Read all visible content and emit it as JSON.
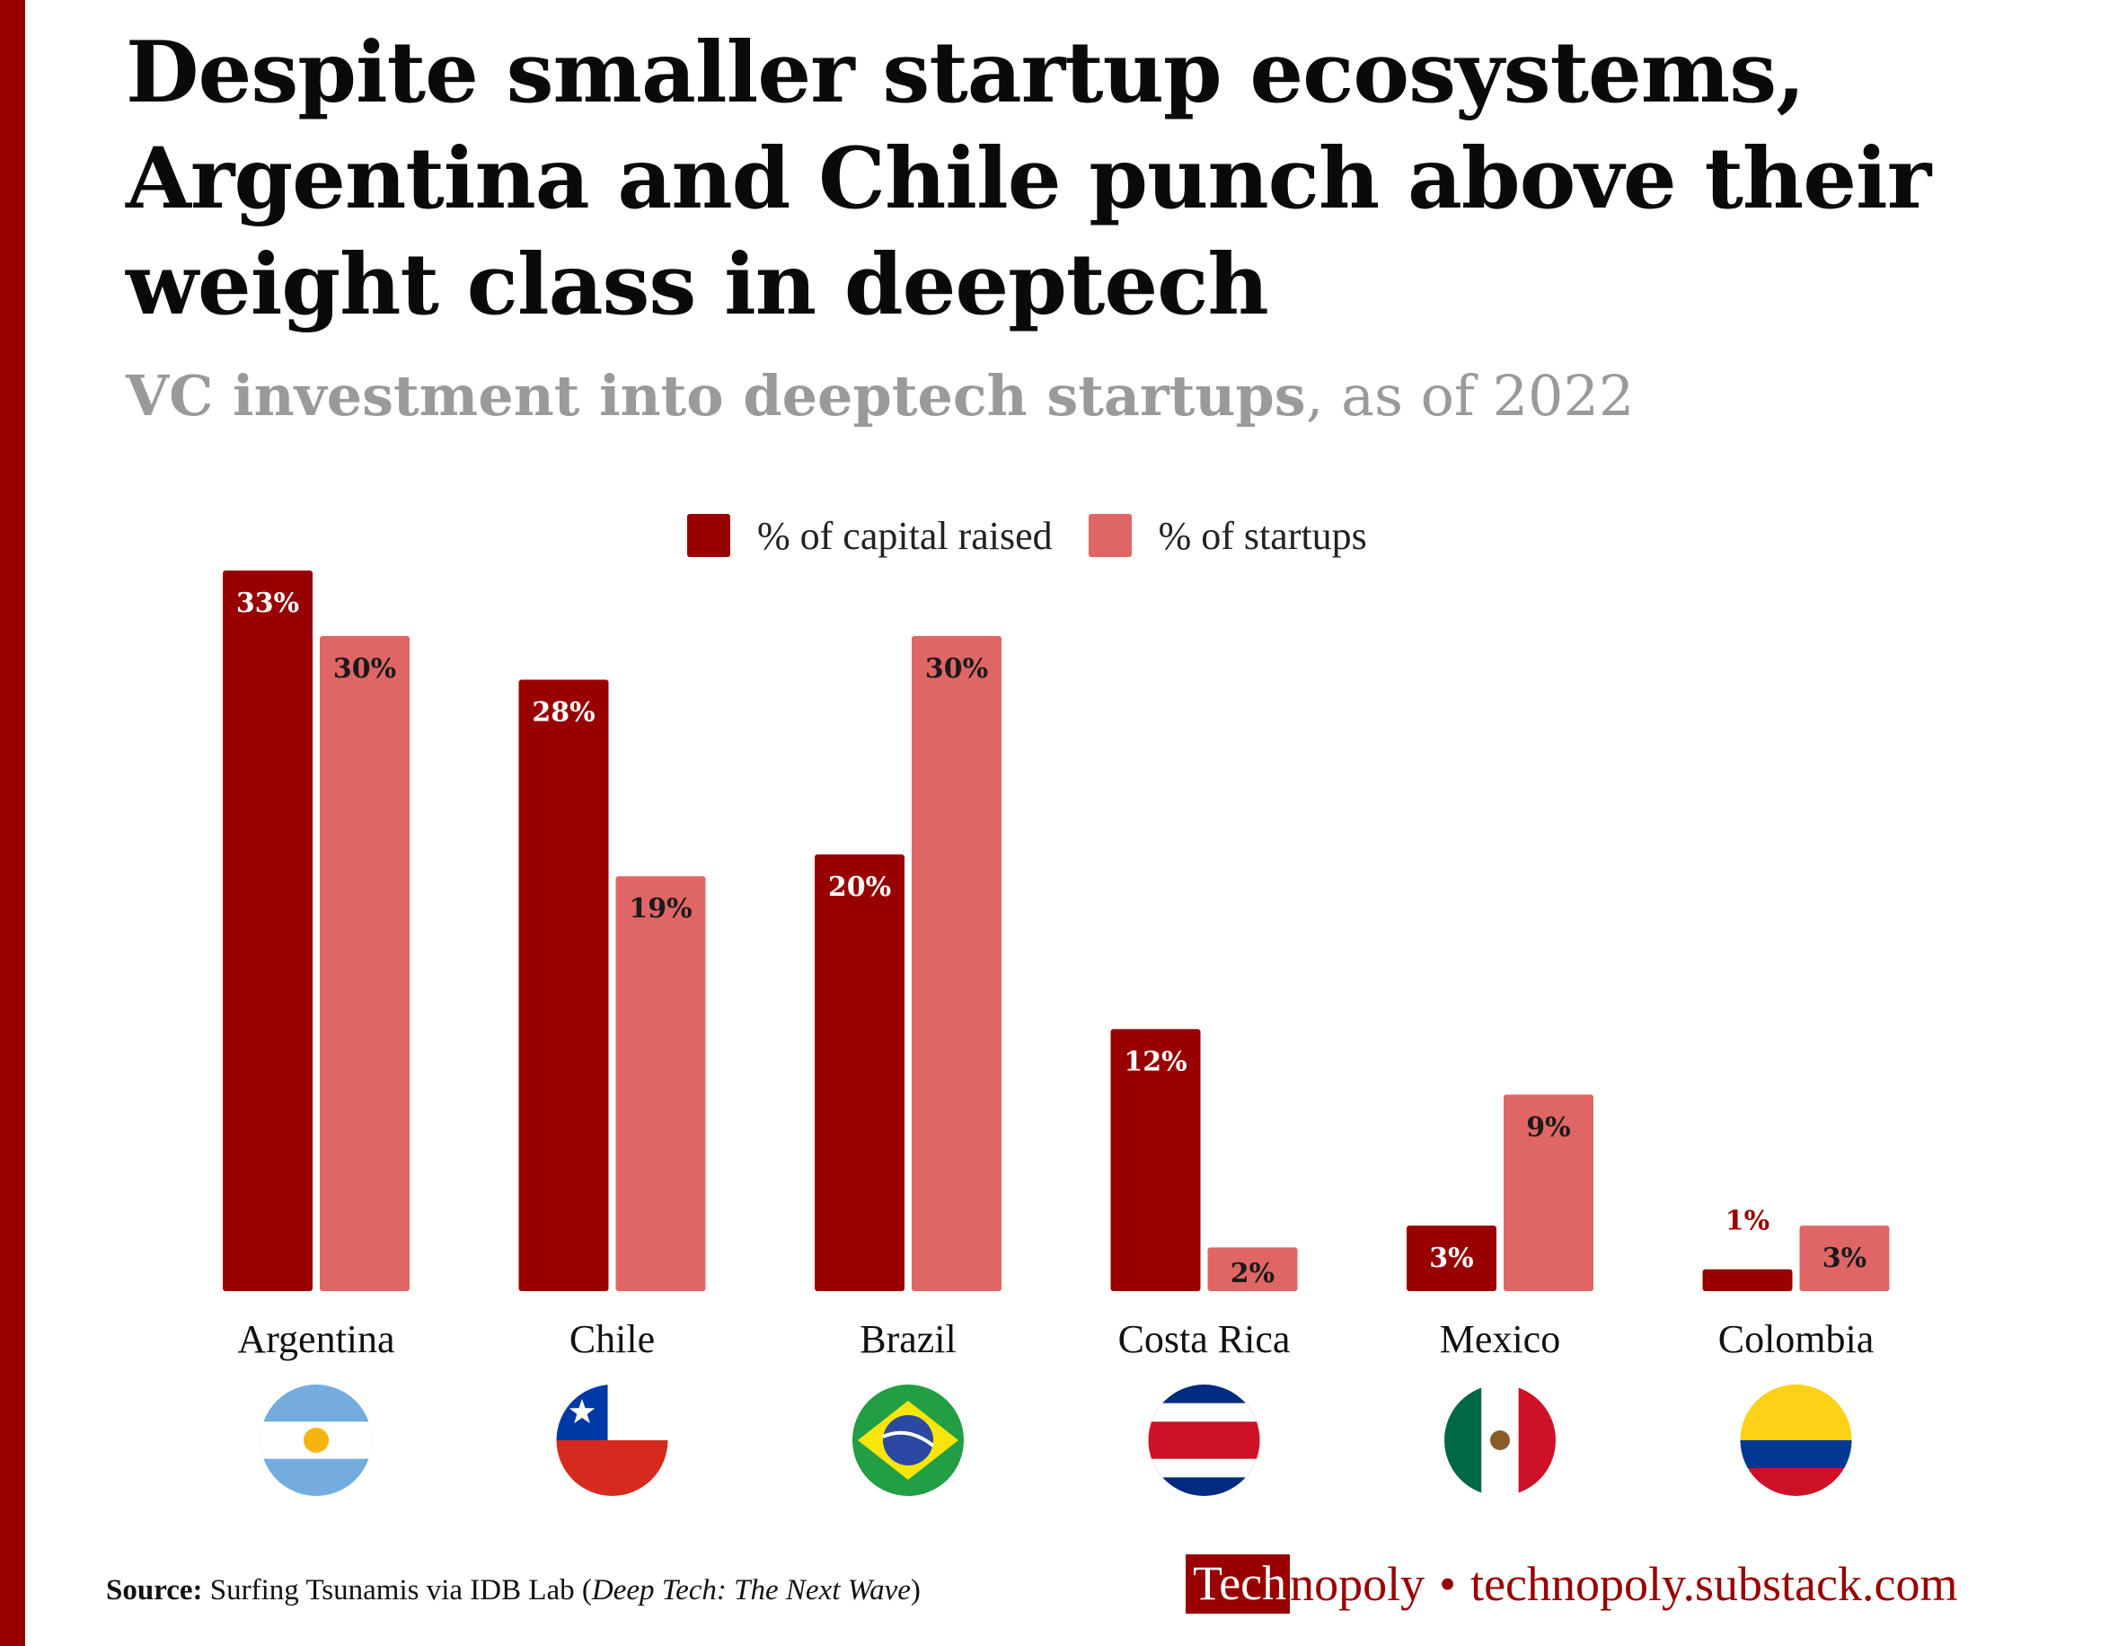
{
  "title": "Despite smaller startup ecosystems, Argentina and Chile punch above their weight class in deeptech",
  "subtitle_bold": "VC investment into deeptech startups",
  "subtitle_rest": ", as of 2022",
  "colors": {
    "accent": "#990000",
    "capital": "#990000",
    "startups": "#E06666"
  },
  "chart_data": {
    "type": "bar",
    "categories": [
      "Argentina",
      "Chile",
      "Brazil",
      "Costa Rica",
      "Mexico",
      "Colombia"
    ],
    "series": [
      {
        "name": "% of capital raised",
        "values": [
          33,
          28,
          20,
          12,
          3,
          1
        ],
        "labels": [
          "33%",
          "28%",
          "20%",
          "12%",
          "3%",
          "1%"
        ]
      },
      {
        "name": "% of startups",
        "values": [
          30,
          19,
          30,
          2,
          9,
          3
        ],
        "labels": [
          "30%",
          "19%",
          "30%",
          "2%",
          "9%",
          "3%"
        ]
      }
    ],
    "ylim": [
      0,
      33
    ],
    "legend_position": "top-center",
    "grid": false
  },
  "flags": [
    {
      "country": "Argentina",
      "icon": "argentina-flag-icon"
    },
    {
      "country": "Chile",
      "icon": "chile-flag-icon"
    },
    {
      "country": "Brazil",
      "icon": "brazil-flag-icon"
    },
    {
      "country": "Costa Rica",
      "icon": "costa-rica-flag-icon"
    },
    {
      "country": "Mexico",
      "icon": "mexico-flag-icon"
    },
    {
      "country": "Colombia",
      "icon": "colombia-flag-icon"
    }
  ],
  "source": {
    "label": "Source:",
    "text": "Surfing Tsunamis via IDB Lab (",
    "italic": "Deep Tech: The Next Wave",
    "close": ")"
  },
  "brand": {
    "logo_boxed": "Tech",
    "logo_rest": "nopoly",
    "separator": "•",
    "url": "technopoly.substack.com"
  }
}
